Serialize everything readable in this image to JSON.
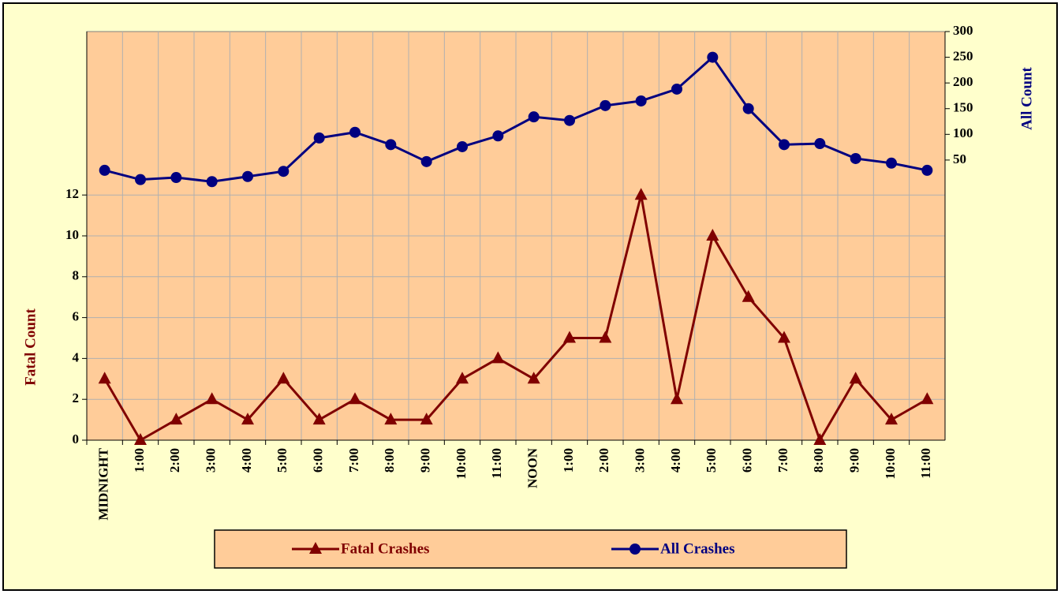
{
  "chart_data": {
    "type": "line",
    "categories": [
      "MIDNIGHT",
      "1:00",
      "2:00",
      "3:00",
      "4:00",
      "5:00",
      "6:00",
      "7:00",
      "8:00",
      "9:00",
      "10:00",
      "11:00",
      "NOON",
      "1:00",
      "2:00",
      "3:00",
      "4:00",
      "5:00",
      "6:00",
      "7:00",
      "8:00",
      "9:00",
      "10:00",
      "11:00"
    ],
    "series": [
      {
        "name": "Fatal Crashes",
        "color": "#800000",
        "marker": "triangle",
        "axis": "y",
        "values": [
          3,
          0,
          1,
          2,
          1,
          3,
          1,
          2,
          1,
          1,
          3,
          4,
          3,
          5,
          5,
          12,
          2,
          10,
          7,
          5,
          0,
          3,
          1,
          2
        ]
      },
      {
        "name": "All Crashes",
        "color": "#000080",
        "marker": "circle",
        "axis": "y2",
        "values": [
          30,
          12,
          16,
          8,
          18,
          28,
          93,
          104,
          80,
          47,
          76,
          97,
          134,
          127,
          156,
          165,
          188,
          250,
          150,
          80,
          82,
          53,
          44,
          30
        ]
      }
    ],
    "ylabel": "Fatal Count",
    "y2label": "All Count",
    "ylim": [
      0,
      20
    ],
    "yticks": [
      0,
      2,
      4,
      6,
      8,
      10,
      12
    ],
    "y2lim": [
      -495,
      300
    ],
    "y2ticks": [
      50,
      100,
      150,
      200,
      250,
      300
    ],
    "grid": true,
    "legend": "bottom"
  }
}
